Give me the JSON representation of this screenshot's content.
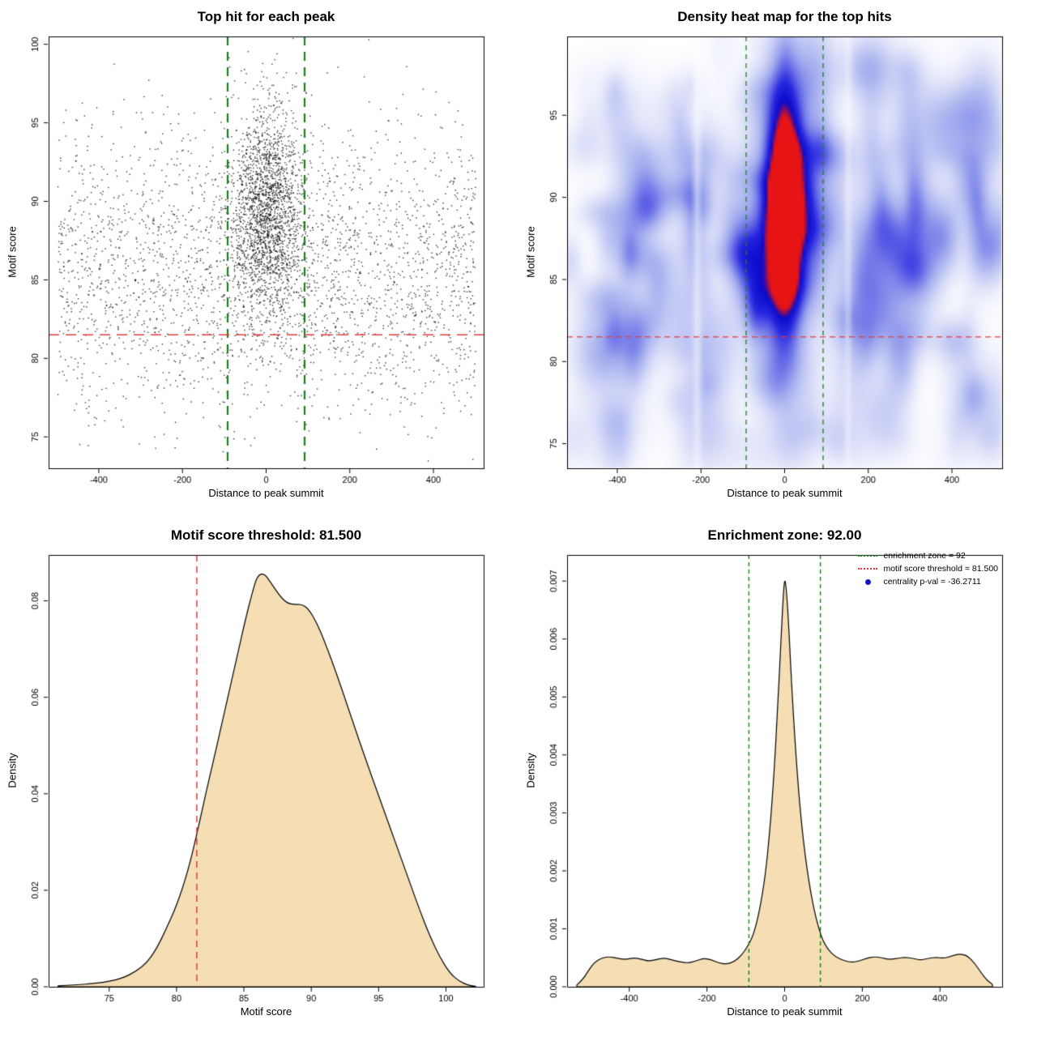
{
  "colors": {
    "threshold_red": "#e03c3c",
    "zone_green": "#1d7d1d",
    "density_fill": "#f5deb3",
    "density_stroke": "#000000",
    "scatter_point": "#000000",
    "legend_pval_blue": "#1414cc",
    "axis_black": "#000000"
  },
  "chart_data": [
    {
      "type": "scatter",
      "title": "Top hit for each peak",
      "xlabel": "Distance to peak summit",
      "ylabel": "Motif score",
      "xlim": [
        -520,
        520
      ],
      "ylim": [
        73,
        100.5
      ],
      "xticks": {
        "values": [
          -400,
          -200,
          0,
          200,
          400
        ],
        "labels": [
          "-400",
          "-200",
          "0",
          "200",
          "400"
        ]
      },
      "yticks": {
        "values": [
          75,
          80,
          85,
          90,
          95,
          100
        ],
        "labels": [
          "75",
          "80",
          "85",
          "90",
          "95",
          "100"
        ]
      },
      "vlines": {
        "x": [
          -92,
          92
        ],
        "color_key": "zone_green",
        "dash": [
          11,
          8
        ],
        "width": 2.2
      },
      "hlines": {
        "y": [
          81.5
        ],
        "color_key": "threshold_red",
        "dash": [
          13,
          8
        ],
        "width": 1.6
      },
      "points_summary": {
        "seed": 42,
        "n_background": 2800,
        "bg_x_range": [
          -500,
          500
        ],
        "bg_y_mean": 85.5,
        "bg_y_sd": 4.6,
        "n_cluster": 2000,
        "cluster_x_mean": 0,
        "cluster_x_sd": 44,
        "cluster_y_mean": 89.4,
        "cluster_y_sd": 3.3,
        "note": "approx 4800 top-hit points; dense central cluster within ±100 bp, motif scores mostly 80-97"
      }
    },
    {
      "type": "heatmap",
      "title": "Density heat map for the top hits",
      "xlabel": "Distance to peak summit",
      "ylabel": "Motif score",
      "xlim": [
        -520,
        520
      ],
      "ylim": [
        73.5,
        99.8
      ],
      "xticks": {
        "values": [
          -400,
          -200,
          0,
          200,
          400
        ],
        "labels": [
          "-400",
          "-200",
          "0",
          "200",
          "400"
        ]
      },
      "yticks": {
        "values": [
          75,
          80,
          85,
          90,
          95
        ],
        "labels": [
          "75",
          "80",
          "85",
          "90",
          "95"
        ]
      },
      "vlines": {
        "x": [
          -92,
          92
        ],
        "color_key": "zone_green",
        "dash": [
          6,
          5
        ],
        "width": 1.3
      },
      "hlines": {
        "y": [
          81.5
        ],
        "color_key": "threshold_red",
        "dash": [
          7,
          5
        ],
        "width": 1.2
      },
      "density_model": {
        "seed": 7,
        "center": {
          "x": 0,
          "y": 89.3,
          "sx": 26,
          "sy": 4.3,
          "amp": 1.6
        },
        "halo": {
          "x": 0,
          "y": 88.5,
          "sx": 55,
          "sy": 8.5,
          "amp": 0.28
        },
        "noise_blobs": 220,
        "noise_amp": [
          0.05,
          0.17
        ],
        "noise_sx": [
          15,
          45
        ],
        "noise_sy": [
          0.7,
          2.0
        ],
        "band_y_mean": 86.5,
        "band_y_sd": 6.5,
        "white_streaks": [
          {
            "x": -210,
            "w": 7,
            "depth": 0.5
          },
          {
            "x": 152,
            "w": 6,
            "depth": 0.4
          }
        ]
      },
      "colormap": [
        "#ffffff",
        "#a0aaee",
        "#2828e0",
        "#0a0acd",
        "#e61414"
      ],
      "colormap_stops": [
        0,
        0.3,
        0.62,
        0.82,
        1
      ]
    },
    {
      "type": "area",
      "title": "Motif score threshold: 81.500",
      "xlabel": "Motif score",
      "ylabel": "Density",
      "xlim": [
        70.5,
        102.8
      ],
      "ylim": [
        0,
        0.0895
      ],
      "xticks": {
        "values": [
          75,
          80,
          85,
          90,
          95,
          100
        ],
        "labels": [
          "75",
          "80",
          "85",
          "90",
          "95",
          "100"
        ]
      },
      "yticks": {
        "values": [
          0,
          0.02,
          0.04,
          0.06,
          0.08
        ],
        "labels": [
          "0.00",
          "0.02",
          "0.04",
          "0.06",
          "0.08"
        ]
      },
      "vlines": {
        "x": [
          81.5
        ],
        "color_key": "threshold_red",
        "dash": [
          8,
          6
        ],
        "width": 1.5
      },
      "curve": {
        "x": [
          71.2,
          72.5,
          74,
          75,
          76,
          77,
          77.8,
          78.5,
          79.2,
          80,
          80.8,
          81.5,
          82.2,
          83,
          83.8,
          84.5,
          85.1,
          85.6,
          86.0,
          86.5,
          87.0,
          87.6,
          88.2,
          88.8,
          89.3,
          89.8,
          90.4,
          91,
          91.8,
          92.6,
          93.5,
          94.4,
          95.3,
          96.2,
          97.1,
          98,
          98.8,
          99.6,
          100.3,
          101,
          101.7,
          102.2
        ],
        "y": [
          0.0002,
          0.0004,
          0.0007,
          0.0011,
          0.0018,
          0.0032,
          0.005,
          0.0078,
          0.0118,
          0.0168,
          0.0235,
          0.0315,
          0.0405,
          0.05,
          0.06,
          0.0685,
          0.076,
          0.0815,
          0.0853,
          0.0857,
          0.0838,
          0.0812,
          0.0795,
          0.0792,
          0.0793,
          0.0783,
          0.0755,
          0.0715,
          0.0655,
          0.059,
          0.0515,
          0.0443,
          0.0373,
          0.0303,
          0.0233,
          0.0163,
          0.0105,
          0.0059,
          0.0028,
          0.0011,
          0.0003,
          0.0001
        ]
      }
    },
    {
      "type": "area",
      "title": "Enrichment zone: 92.00",
      "xlabel": "Distance to peak summit",
      "ylabel": "Density",
      "xlim": [
        -560,
        560
      ],
      "ylim": [
        0,
        0.00745
      ],
      "xticks": {
        "values": [
          -400,
          -200,
          0,
          200,
          400
        ],
        "labels": [
          "-400",
          "-200",
          "0",
          "200",
          "400"
        ]
      },
      "yticks": {
        "values": [
          0,
          0.001,
          0.002,
          0.003,
          0.004,
          0.005,
          0.006,
          0.007
        ],
        "labels": [
          "0.000",
          "0.001",
          "0.002",
          "0.003",
          "0.004",
          "0.005",
          "0.006",
          "0.007"
        ]
      },
      "vlines": {
        "x": [
          -92,
          92
        ],
        "color_key": "zone_green",
        "dash": [
          5,
          4
        ],
        "width": 1.4
      },
      "curve": {
        "x": [
          -535,
          -520,
          -505,
          -490,
          -470,
          -450,
          -430,
          -410,
          -390,
          -370,
          -350,
          -330,
          -310,
          -290,
          -270,
          -250,
          -230,
          -210,
          -190,
          -170,
          -150,
          -130,
          -110,
          -95,
          -80,
          -65,
          -50,
          -38,
          -28,
          -18,
          -10,
          -4,
          0,
          4,
          10,
          18,
          28,
          38,
          50,
          65,
          80,
          95,
          110,
          130,
          150,
          170,
          190,
          210,
          230,
          250,
          270,
          290,
          310,
          330,
          350,
          370,
          390,
          410,
          430,
          450,
          470,
          490,
          505,
          520,
          535
        ],
        "y": [
          3e-05,
          0.00012,
          0.00028,
          0.00042,
          0.0005,
          0.00052,
          0.00049,
          0.00047,
          0.0005,
          0.00048,
          0.00044,
          0.00047,
          0.0005,
          0.00046,
          0.00043,
          0.00041,
          0.00044,
          0.00049,
          0.00047,
          0.00041,
          0.00039,
          0.00043,
          0.00055,
          0.0007,
          0.0009,
          0.0013,
          0.0019,
          0.0027,
          0.0036,
          0.0048,
          0.0059,
          0.0067,
          0.00705,
          0.0069,
          0.0063,
          0.0052,
          0.0041,
          0.0032,
          0.0024,
          0.0017,
          0.0012,
          0.00085,
          0.00065,
          0.00052,
          0.00046,
          0.00042,
          0.00044,
          0.00049,
          0.00052,
          0.0005,
          0.00047,
          0.00049,
          0.00051,
          0.00049,
          0.00046,
          0.00049,
          0.00051,
          0.00049,
          0.00053,
          0.00057,
          0.00054,
          0.0004,
          0.00025,
          0.00012,
          4e-05
        ]
      },
      "legend": {
        "items": [
          {
            "label": "enrichment zone = 92",
            "swatch": "green-dotted"
          },
          {
            "label": "motif score threshold = 81.500",
            "swatch": "red-dotted"
          },
          {
            "label": "centrality p-val = -36.2711",
            "swatch": "blue-dot"
          }
        ]
      }
    }
  ]
}
